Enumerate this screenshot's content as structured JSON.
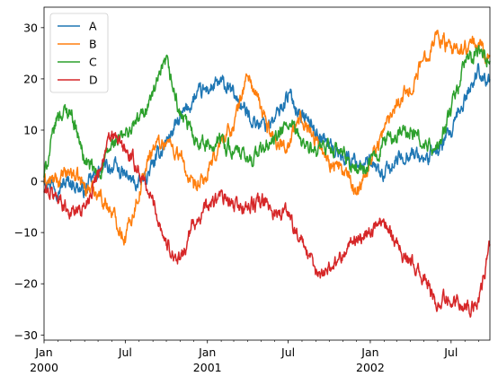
{
  "chart_data": {
    "type": "line",
    "title": "",
    "xlabel": "",
    "ylabel": "",
    "xlim": [
      "2000-01-01",
      "2002-09-26"
    ],
    "ylim": [
      -31,
      34
    ],
    "grid": false,
    "legend_position": "top-left",
    "x_major_ticks": [
      {
        "date": "2000-01-01",
        "line1": "Jan",
        "line2": "2000"
      },
      {
        "date": "2000-07-01",
        "line1": "Jul",
        "line2": ""
      },
      {
        "date": "2001-01-01",
        "line1": "Jan",
        "line2": "2001"
      },
      {
        "date": "2001-07-01",
        "line1": "Jul",
        "line2": ""
      },
      {
        "date": "2002-01-01",
        "line1": "Jan",
        "line2": "2002"
      },
      {
        "date": "2002-07-01",
        "line1": "Jul",
        "line2": ""
      }
    ],
    "x_minor_ticks": [
      "2000-02-01",
      "2000-03-01",
      "2000-04-01",
      "2000-05-01",
      "2000-06-01",
      "2000-08-01",
      "2000-09-01",
      "2000-10-01",
      "2000-11-01",
      "2000-12-01",
      "2001-02-01",
      "2001-03-01",
      "2001-04-01",
      "2001-05-01",
      "2001-06-01",
      "2001-08-01",
      "2001-09-01",
      "2001-10-01",
      "2001-11-01",
      "2001-12-01",
      "2002-02-01",
      "2002-03-01",
      "2002-04-01",
      "2002-05-01",
      "2002-06-01",
      "2002-08-01",
      "2002-09-01"
    ],
    "y_ticks": [
      -30,
      -20,
      -10,
      0,
      10,
      20,
      30
    ],
    "x": [
      "2000-01-01",
      "2000-02-01",
      "2000-03-01",
      "2000-04-01",
      "2000-05-01",
      "2000-06-01",
      "2000-07-01",
      "2000-08-01",
      "2000-09-01",
      "2000-10-01",
      "2000-11-01",
      "2000-12-01",
      "2001-01-01",
      "2001-02-01",
      "2001-03-01",
      "2001-04-01",
      "2001-05-01",
      "2001-06-01",
      "2001-07-01",
      "2001-08-01",
      "2001-09-01",
      "2001-10-01",
      "2001-11-01",
      "2001-12-01",
      "2002-01-01",
      "2002-02-01",
      "2002-03-01",
      "2002-04-01",
      "2002-05-01",
      "2002-06-01",
      "2002-07-01",
      "2002-08-01",
      "2002-09-01",
      "2002-09-26"
    ],
    "series": [
      {
        "name": "A",
        "color": "#1f77b4",
        "values": [
          1,
          -1,
          0,
          -2,
          2,
          3,
          1,
          -1,
          3,
          8,
          12,
          16,
          18,
          19,
          17,
          13,
          11,
          12,
          17,
          13,
          10,
          7,
          5,
          4,
          3,
          1,
          4,
          6,
          4,
          6,
          9,
          16,
          22,
          19
        ]
      },
      {
        "name": "B",
        "color": "#ff7f0e",
        "values": [
          0,
          0,
          2,
          -1,
          -2,
          -6,
          -11,
          -2,
          7,
          8,
          5,
          -2,
          1,
          8,
          11,
          21,
          14,
          8,
          7,
          13,
          8,
          4,
          2,
          -2,
          4,
          10,
          16,
          18,
          24,
          29,
          25,
          26,
          27,
          24
        ]
      },
      {
        "name": "C",
        "color": "#2ca02c",
        "values": [
          1,
          13,
          14,
          4,
          1,
          7,
          9,
          12,
          17,
          23,
          13,
          9,
          7,
          8,
          6,
          4,
          6,
          8,
          11,
          8,
          5,
          7,
          5,
          2,
          3,
          8,
          9,
          10,
          7,
          6,
          14,
          23,
          25,
          24
        ]
      },
      {
        "name": "D",
        "color": "#d62728",
        "values": [
          -2,
          -3,
          -6,
          -5,
          2,
          9,
          6,
          2,
          -4,
          -12,
          -16,
          -8,
          -5,
          -3,
          -5,
          -5,
          -4,
          -6,
          -6,
          -12,
          -18,
          -17,
          -14,
          -11,
          -10,
          -7,
          -12,
          -16,
          -19,
          -24,
          -22,
          -25,
          -23,
          -13
        ]
      }
    ]
  }
}
